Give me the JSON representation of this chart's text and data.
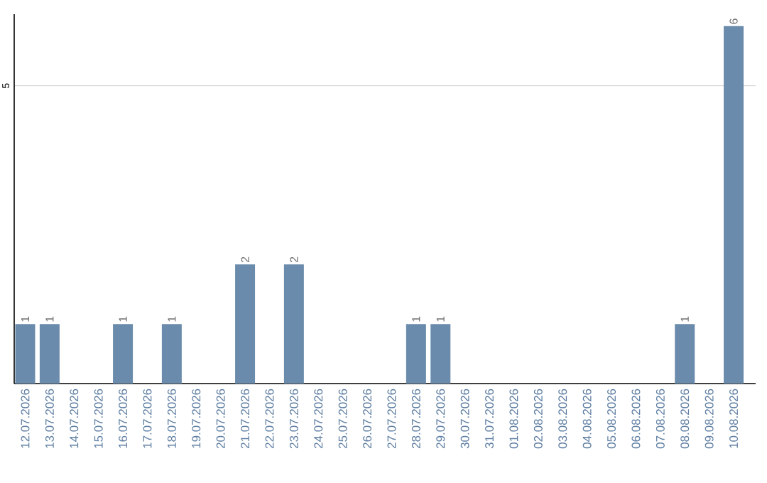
{
  "chart_data": {
    "type": "bar",
    "categories": [
      "12.07.2026",
      "13.07.2026",
      "14.07.2026",
      "15.07.2026",
      "16.07.2026",
      "17.07.2026",
      "18.07.2026",
      "19.07.2026",
      "20.07.2026",
      "21.07.2026",
      "22.07.2026",
      "23.07.2026",
      "24.07.2026",
      "25.07.2026",
      "26.07.2026",
      "27.07.2026",
      "28.07.2026",
      "29.07.2026",
      "30.07.2026",
      "31.07.2026",
      "01.08.2026",
      "02.08.2026",
      "03.08.2026",
      "04.08.2026",
      "05.08.2026",
      "06.08.2026",
      "07.08.2026",
      "08.08.2026",
      "09.08.2026",
      "10.08.2026"
    ],
    "values": [
      1,
      1,
      0,
      0,
      1,
      0,
      1,
      0,
      0,
      2,
      0,
      2,
      0,
      0,
      0,
      0,
      1,
      1,
      0,
      0,
      0,
      0,
      0,
      0,
      0,
      0,
      0,
      1,
      0,
      6
    ],
    "value_labels": [
      "1",
      "1",
      null,
      null,
      "1",
      null,
      "1",
      null,
      null,
      "2",
      null,
      "2",
      null,
      null,
      null,
      null,
      "1",
      "1",
      null,
      null,
      null,
      null,
      null,
      null,
      null,
      null,
      null,
      "1",
      null,
      "6"
    ],
    "color": "#6a8bab",
    "ylim": [
      0,
      6.2
    ],
    "yticks": [
      5
    ],
    "grid": "y"
  }
}
